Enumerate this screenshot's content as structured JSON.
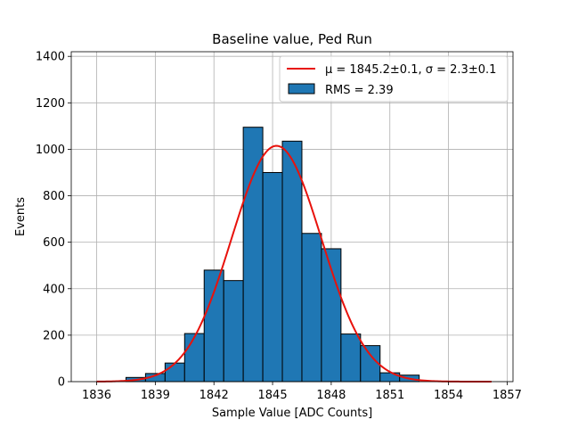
{
  "chart_data": {
    "type": "bar",
    "title": "Baseline value, Ped Run",
    "xlabel": "Sample Value [ADC Counts]",
    "ylabel": "Events",
    "xlim": [
      1834.7,
      1857.3
    ],
    "ylim": [
      0,
      1420
    ],
    "grid": true,
    "xticks": [
      1836,
      1839,
      1842,
      1845,
      1848,
      1851,
      1854,
      1857
    ],
    "yticks": [
      0,
      200,
      400,
      600,
      800,
      1000,
      1200,
      1400
    ],
    "bin_edges": [
      1837.5,
      1838.5,
      1839.5,
      1840.5,
      1841.5,
      1842.5,
      1843.5,
      1844.5,
      1845.5,
      1846.5,
      1847.5,
      1848.5,
      1849.5,
      1850.5,
      1851.5,
      1852.5
    ],
    "values": [
      18,
      35,
      80,
      207,
      480,
      435,
      1095,
      900,
      1035,
      638,
      572,
      205,
      155,
      38,
      28
    ],
    "bar_color": "#1f77b4",
    "fit_color": "#e8120c",
    "fit": {
      "mu": 1845.2,
      "sigma": 2.3,
      "amplitude": 1015,
      "x_range": [
        1836,
        1856.2
      ]
    },
    "legend": {
      "location": "upper right",
      "entries": [
        {
          "kind": "line",
          "label": "μ = 1845.2±0.1, σ = 2.3±0.1"
        },
        {
          "kind": "patch",
          "label": "RMS = 2.39"
        }
      ]
    }
  }
}
